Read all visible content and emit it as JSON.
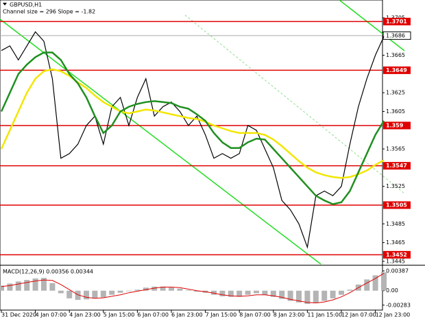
{
  "chart_data": [
    {
      "type": "line",
      "title": "GBPUSD,H1",
      "subtitle": "Channel size = 296 Slope = -1.82",
      "categories": [
        "31 Dec 2020",
        null,
        null,
        null,
        "4 Jan 07:00",
        null,
        null,
        null,
        "4 Jan 23:00",
        null,
        null,
        null,
        "5 Jan 15:00",
        null,
        null,
        null,
        "6 Jan 07:00",
        null,
        null,
        null,
        "6 Jan 23:00",
        null,
        null,
        null,
        "7 Jan 15:00",
        null,
        null,
        null,
        "8 Jan 07:00",
        null,
        null,
        null,
        "8 Jan 23:00",
        null,
        null,
        null,
        "11 Jan 15:00",
        null,
        null,
        null,
        "12 Jan 07:00",
        null,
        null,
        null,
        "12 Jan 23:00",
        null
      ],
      "series": [
        {
          "name": "GBPUSD",
          "color": "#000000",
          "values": [
            1.367,
            1.3675,
            1.366,
            1.3675,
            1.369,
            1.368,
            1.364,
            1.3555,
            1.356,
            1.357,
            1.359,
            1.36,
            1.357,
            1.361,
            1.362,
            1.359,
            1.362,
            1.364,
            1.36,
            1.361,
            1.3615,
            1.3605,
            1.359,
            1.36,
            1.358,
            1.3555,
            1.356,
            1.3555,
            1.356,
            1.359,
            1.3585,
            1.3565,
            1.3545,
            1.351,
            1.35,
            1.3485,
            1.346,
            1.3515,
            1.352,
            1.3515,
            1.3525,
            1.357,
            1.361,
            1.364,
            1.3665,
            1.3685
          ]
        },
        {
          "name": "MA slow",
          "color": "#f2e600",
          "values": [
            1.3565,
            1.3585,
            1.3605,
            1.3625,
            1.364,
            1.3648,
            1.365,
            1.3648,
            1.3643,
            1.3636,
            1.363,
            1.3622,
            1.3615,
            1.361,
            1.3605,
            1.3603,
            1.3605,
            1.3607,
            1.3606,
            1.3604,
            1.3602,
            1.36,
            1.3598,
            1.3597,
            1.3594,
            1.359,
            1.3587,
            1.3584,
            1.3582,
            1.3582,
            1.3582,
            1.358,
            1.3575,
            1.3568,
            1.356,
            1.3552,
            1.3545,
            1.354,
            1.3537,
            1.3535,
            1.3534,
            1.3535,
            1.3538,
            1.3542,
            1.3548,
            1.3553
          ]
        },
        {
          "name": "MA fast",
          "color": "#1f8f1f",
          "values": [
            1.3605,
            1.3625,
            1.3645,
            1.3655,
            1.3663,
            1.3668,
            1.3668,
            1.366,
            1.3645,
            1.3635,
            1.362,
            1.36,
            1.3582,
            1.359,
            1.3605,
            1.361,
            1.3613,
            1.3615,
            1.3616,
            1.3615,
            1.3614,
            1.361,
            1.3608,
            1.3602,
            1.3595,
            1.3582,
            1.3572,
            1.3566,
            1.3566,
            1.3572,
            1.3576,
            1.3575,
            1.3565,
            1.3555,
            1.3545,
            1.3535,
            1.3525,
            1.3515,
            1.351,
            1.3506,
            1.3508,
            1.352,
            1.354,
            1.356,
            1.358,
            1.3595
          ]
        }
      ],
      "levels": [
        1.3701,
        1.3649,
        1.359,
        1.3547,
        1.3505,
        1.3452
      ],
      "level_color": "#e00000",
      "current_price": 1.3686,
      "ylim": [
        1.3442,
        1.3724
      ],
      "yticks": [
        1.3705,
        1.3665,
        1.3625,
        1.3605,
        1.3565,
        1.3525,
        1.3485,
        1.3465,
        1.3445
      ]
    },
    {
      "type": "bar",
      "title": "MACD(12,26,9) 0.00356 0.00344",
      "series": [
        {
          "name": "MACD",
          "color": "#b4b4b4",
          "values": [
            0.001,
            0.0014,
            0.0018,
            0.0021,
            0.0024,
            0.0025,
            0.0015,
            -0.0005,
            -0.0015,
            -0.0018,
            -0.0017,
            -0.0015,
            -0.0013,
            -0.0008,
            -0.0004,
            -0.0001,
            0.0002,
            0.0006,
            0.0008,
            0.0008,
            0.0006,
            0.0004,
            0.0001,
            -0.0002,
            -0.0004,
            -0.0008,
            -0.0011,
            -0.0012,
            -0.0012,
            -0.0008,
            -0.0005,
            -0.0008,
            -0.0012,
            -0.0016,
            -0.002,
            -0.0023,
            -0.0026,
            -0.0024,
            -0.002,
            -0.0015,
            -0.0008,
            0.0002,
            0.0012,
            0.0022,
            0.003,
            0.0036
          ]
        },
        {
          "name": "Signal",
          "type": "line",
          "color": "#e00000",
          "values": [
            0.0008,
            0.001,
            0.0013,
            0.0016,
            0.0019,
            0.0021,
            0.002,
            0.0012,
            0.0002,
            -0.0008,
            -0.0013,
            -0.0015,
            -0.0014,
            -0.0011,
            -0.0008,
            -0.0004,
            -0.0001,
            0.0002,
            0.0005,
            0.0007,
            0.0007,
            0.0006,
            0.0003,
            0.0,
            -0.0002,
            -0.0005,
            -0.0008,
            -0.001,
            -0.0011,
            -0.001,
            -0.0008,
            -0.0008,
            -0.001,
            -0.0013,
            -0.0017,
            -0.002,
            -0.0023,
            -0.0024,
            -0.0022,
            -0.0018,
            -0.0012,
            -0.0004,
            0.0006,
            0.0015,
            0.0024,
            0.0034
          ]
        }
      ],
      "ylim": [
        -0.0038,
        0.0048
      ],
      "yticks": [
        0.00387,
        {
          "value": 0,
          "label": "0.00"
        },
        -0.00283
      ]
    }
  ]
}
